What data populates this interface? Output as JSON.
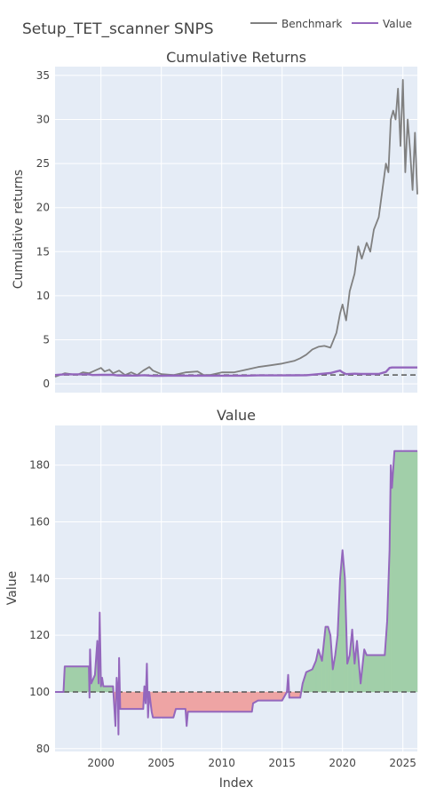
{
  "figure": {
    "title": "Setup_TET_scanner SNPS",
    "legend": [
      "Benchmark",
      "Value"
    ],
    "xlabel": "Index"
  },
  "chart_data": [
    {
      "type": "line",
      "title": "Cumulative Returns",
      "ylabel": "Cumulative returns",
      "xlim": [
        1996.2,
        2026.2
      ],
      "ylim": [
        -1,
        36
      ],
      "yticks": [
        0,
        5,
        10,
        15,
        20,
        25,
        30,
        35
      ],
      "xticks": [
        2000,
        2005,
        2010,
        2015,
        2020,
        2025
      ],
      "baseline": 1,
      "series": [
        {
          "name": "Benchmark",
          "color": "#808080",
          "x": [
            1996.2,
            1997.0,
            1998.0,
            1998.5,
            1999.0,
            1999.5,
            2000.0,
            2000.3,
            2000.7,
            2001.0,
            2001.5,
            2002.0,
            2002.5,
            2003.0,
            2003.5,
            2004.0,
            2004.3,
            2005.0,
            2006.0,
            2007.0,
            2008.0,
            2008.5,
            2009.0,
            2010.0,
            2011.0,
            2012.0,
            2013.0,
            2014.0,
            2015.0,
            2016.0,
            2016.5,
            2017.0,
            2017.5,
            2018.0,
            2018.5,
            2019.0,
            2019.5,
            2019.8,
            2020.0,
            2020.3,
            2020.6,
            2021.0,
            2021.3,
            2021.6,
            2022.0,
            2022.3,
            2022.6,
            2023.0,
            2023.3,
            2023.6,
            2023.8,
            2024.0,
            2024.2,
            2024.4,
            2024.6,
            2024.8,
            2025.0,
            2025.2,
            2025.4,
            2025.6,
            2025.8,
            2026.0,
            2026.2
          ],
          "y": [
            0.8,
            1.2,
            1.0,
            1.3,
            1.2,
            1.5,
            1.8,
            1.4,
            1.6,
            1.2,
            1.5,
            1.0,
            1.3,
            1.0,
            1.5,
            1.9,
            1.5,
            1.1,
            1.0,
            1.3,
            1.4,
            1.0,
            1.0,
            1.3,
            1.3,
            1.6,
            1.9,
            2.1,
            2.3,
            2.6,
            2.9,
            3.3,
            3.9,
            4.2,
            4.3,
            4.1,
            5.8,
            8.0,
            9.0,
            7.2,
            10.5,
            12.5,
            15.6,
            14.2,
            16.0,
            15.0,
            17.5,
            18.9,
            22.0,
            25.0,
            24.0,
            30.0,
            31.0,
            30.0,
            33.5,
            27.0,
            34.5,
            24.0,
            30.0,
            26.5,
            22.0,
            28.5,
            21.5
          ]
        },
        {
          "name": "Value",
          "color": "#9467bd",
          "x": [
            1996.2,
            1997.0,
            1999.0,
            1999.3,
            2000.0,
            2001.0,
            2001.4,
            2002.0,
            2003.0,
            2003.5,
            2004.3,
            2005.0,
            2006.0,
            2007.0,
            2008.0,
            2009.0,
            2010.0,
            2011.0,
            2012.0,
            2013.0,
            2014.0,
            2015.0,
            2016.0,
            2017.0,
            2018.0,
            2019.0,
            2019.5,
            2019.8,
            2020.0,
            2020.3,
            2021.0,
            2021.5,
            2022.0,
            2023.0,
            2023.6,
            2023.9,
            2024.1,
            2025.0,
            2026.2
          ],
          "y": [
            1.0,
            1.08,
            1.08,
            1.0,
            1.02,
            1.02,
            0.95,
            0.94,
            0.94,
            0.98,
            0.91,
            0.91,
            0.94,
            0.93,
            0.93,
            0.93,
            0.93,
            0.93,
            0.93,
            0.96,
            0.96,
            0.96,
            0.97,
            0.98,
            1.1,
            1.22,
            1.4,
            1.5,
            1.3,
            1.1,
            1.15,
            1.12,
            1.12,
            1.12,
            1.35,
            1.8,
            1.85,
            1.85,
            1.85
          ]
        }
      ]
    },
    {
      "type": "area",
      "title": "Value",
      "ylabel": "Value",
      "xlabel": "Index",
      "xlim": [
        1996.2,
        2026.2
      ],
      "ylim": [
        79,
        194
      ],
      "yticks": [
        80,
        100,
        120,
        140,
        160,
        180
      ],
      "xticks": [
        2000,
        2005,
        2010,
        2015,
        2020,
        2025
      ],
      "baseline": 100,
      "fill_colors": {
        "above": "#a1cfa9",
        "below": "#eea4a4"
      },
      "series": [
        {
          "name": "Value",
          "color": "#9467bd",
          "x": [
            1996.2,
            1996.9,
            1997.0,
            1997.3,
            1999.0,
            1999.05,
            1999.1,
            1999.2,
            1999.5,
            1999.7,
            1999.8,
            1999.9,
            2000.0,
            2000.1,
            2000.2,
            2001.0,
            2001.2,
            2001.3,
            2001.4,
            2001.45,
            2001.5,
            2001.6,
            2001.7,
            2003.5,
            2003.6,
            2003.7,
            2003.8,
            2003.9,
            2004.0,
            2004.2,
            2004.3,
            2004.5,
            2006.0,
            2006.2,
            2007.0,
            2007.1,
            2007.2,
            2012.5,
            2012.6,
            2013.0,
            2015.0,
            2015.4,
            2015.5,
            2015.6,
            2015.7,
            2016.5,
            2016.7,
            2017.0,
            2017.5,
            2017.8,
            2018.0,
            2018.3,
            2018.6,
            2018.8,
            2019.0,
            2019.2,
            2019.4,
            2019.6,
            2019.8,
            2020.0,
            2020.2,
            2020.4,
            2020.6,
            2020.8,
            2021.0,
            2021.2,
            2021.5,
            2021.8,
            2022.0,
            2023.5,
            2023.7,
            2023.9,
            2024.0,
            2024.1,
            2024.3,
            2026.2
          ],
          "y": [
            100,
            100,
            109,
            109,
            109,
            98,
            115,
            103,
            106,
            118,
            103,
            128,
            102,
            105,
            102,
            102,
            88,
            105,
            100,
            85,
            112,
            94,
            94,
            94,
            102,
            96,
            110,
            91,
            100,
            93,
            91,
            91,
            91,
            94,
            94,
            88,
            93,
            93,
            96,
            97,
            97,
            100,
            106,
            98,
            98,
            98,
            103,
            107,
            108,
            111,
            115,
            111,
            123,
            123,
            120,
            108,
            113,
            120,
            140,
            150,
            140,
            110,
            113,
            122,
            110,
            118,
            103,
            115,
            113,
            113,
            125,
            150,
            180,
            172,
            185,
            185
          ]
        }
      ]
    }
  ]
}
